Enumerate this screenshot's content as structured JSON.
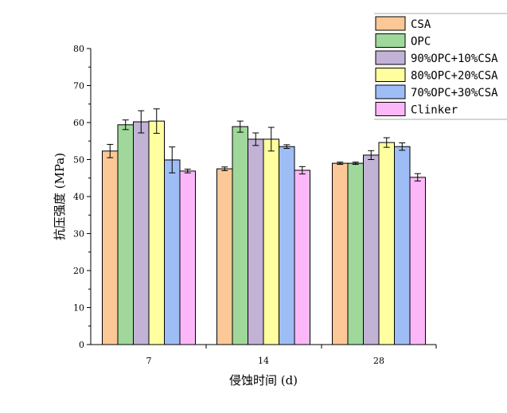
{
  "chart_data": {
    "type": "bar",
    "title": "",
    "xlabel": "侵蚀时间 (d)",
    "ylabel": "抗压强度 (MPa)",
    "ylim": [
      0,
      80
    ],
    "yticks": [
      "0",
      "10",
      "20",
      "30",
      "40",
      "50",
      "60",
      "70",
      "80"
    ],
    "categories": [
      "7",
      "14",
      "28"
    ],
    "legend_position": "top-right",
    "grid": false,
    "series": [
      {
        "name": "CSA",
        "color": "#fdc897",
        "values": [
          52.3,
          47.5,
          49.0
        ],
        "errors": [
          1.8,
          0.5,
          0.3
        ]
      },
      {
        "name": "OPC",
        "color": "#9fd89a",
        "values": [
          59.4,
          58.9,
          49.0
        ],
        "errors": [
          1.3,
          1.5,
          0.3
        ]
      },
      {
        "name": "90%OPC+10%CSA",
        "color": "#c1b2d6",
        "values": [
          60.2,
          55.5,
          51.2
        ],
        "errors": [
          3.0,
          1.7,
          1.2
        ]
      },
      {
        "name": "80%OPC+20%CSA",
        "color": "#ffff9f",
        "values": [
          60.4,
          55.5,
          54.6
        ],
        "errors": [
          3.3,
          3.2,
          1.3
        ]
      },
      {
        "name": "70%OPC+30%CSA",
        "color": "#9fbdf5",
        "values": [
          49.9,
          53.5,
          53.5
        ],
        "errors": [
          3.5,
          0.5,
          1.0
        ]
      },
      {
        "name": "Clinker",
        "color": "#fcb7f9",
        "values": [
          46.9,
          47.1,
          45.2
        ],
        "errors": [
          0.5,
          1.0,
          1.0
        ]
      }
    ]
  }
}
